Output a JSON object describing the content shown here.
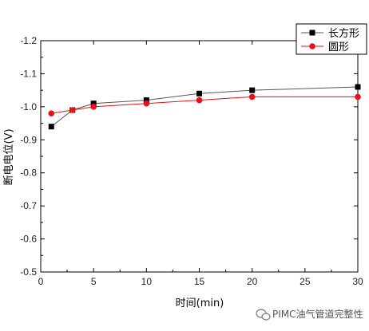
{
  "chart_data": {
    "type": "line",
    "xlabel": "时间(min)",
    "ylabel": "断电电位(V)",
    "xlim": [
      0,
      30
    ],
    "ylim": [
      -0.5,
      -1.2
    ],
    "x_ticks": [
      0,
      5,
      10,
      15,
      20,
      25,
      30
    ],
    "y_ticks": [
      -0.5,
      -0.6,
      -0.7,
      -0.8,
      -0.9,
      -1.0,
      -1.1,
      -1.2
    ],
    "x_tick_labels": [
      "0",
      "5",
      "10",
      "15",
      "20",
      "25",
      "30"
    ],
    "y_tick_labels": [
      "-0.5",
      "-0.6",
      "-0.7",
      "-0.8",
      "-0.9",
      "-1.0",
      "-1.1",
      "-1.2"
    ],
    "grid": false,
    "legend_position": "top-right",
    "series": [
      {
        "name": "长方形",
        "marker": "square",
        "color": "#000000",
        "line_color": "#555555",
        "x": [
          1,
          3,
          5,
          10,
          15,
          20,
          30
        ],
        "y": [
          -0.94,
          -0.99,
          -1.01,
          -1.02,
          -1.04,
          -1.05,
          -1.06
        ]
      },
      {
        "name": "圆形",
        "marker": "circle",
        "color": "#e8101a",
        "line_color": "#e8101a",
        "x": [
          1,
          3,
          5,
          10,
          15,
          20,
          30
        ],
        "y": [
          -0.98,
          -0.99,
          -1.0,
          -1.01,
          -1.02,
          -1.03,
          -1.03
        ]
      }
    ]
  },
  "watermark": {
    "text": "PIMC油气管道完整性",
    "icon": "wechat-icon"
  }
}
